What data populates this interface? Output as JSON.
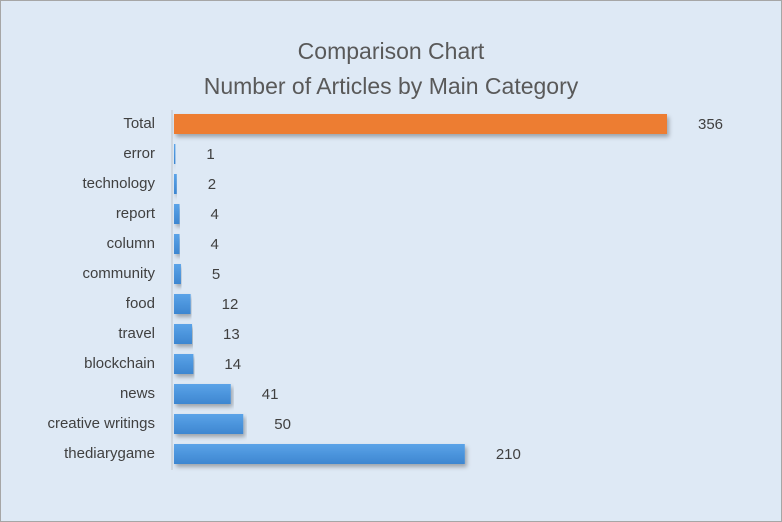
{
  "chart_data": {
    "type": "bar",
    "orientation": "horizontal",
    "title": [
      "Comparison Chart",
      "Number of Articles by Main Category"
    ],
    "categories": [
      "Total",
      "error",
      "technology",
      "report",
      "column",
      "community",
      "food",
      "travel",
      "blockchain",
      "news",
      "creative writings",
      "thediarygame"
    ],
    "values": [
      356,
      1,
      2,
      4,
      4,
      5,
      12,
      13,
      14,
      41,
      50,
      210
    ],
    "colors": [
      "#ed7d31",
      "#4a90d9",
      "#4a90d9",
      "#4a90d9",
      "#4a90d9",
      "#4a90d9",
      "#4a90d9",
      "#4a90d9",
      "#4a90d9",
      "#4a90d9",
      "#4a90d9",
      "#4a90d9"
    ]
  }
}
